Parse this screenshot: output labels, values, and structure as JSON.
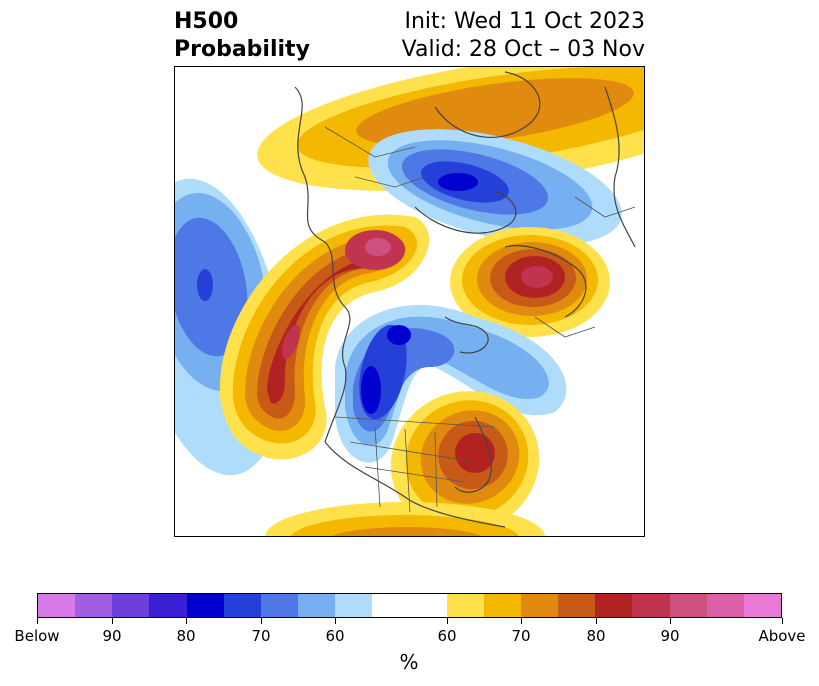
{
  "title": {
    "left_line1": "H500",
    "left_line2": "Probability",
    "right_line1": "Init: Wed 11 Oct 2023",
    "right_line2": "Valid: 28 Oct – 03 Nov"
  },
  "map": {
    "projection": "polar stereographic, North America / Arctic",
    "features": [
      "coastlines",
      "country borders",
      "US state borders",
      "Canadian province borders"
    ]
  },
  "colorbar": {
    "unit": "%",
    "segments": [
      {
        "color": "#d87be8"
      },
      {
        "color": "#a15ee0"
      },
      {
        "color": "#6e3fd9"
      },
      {
        "color": "#3a20d4"
      },
      {
        "color": "#0000cf"
      },
      {
        "color": "#2540d8"
      },
      {
        "color": "#4d78e6"
      },
      {
        "color": "#76b0f1"
      },
      {
        "color": "#aedcfa"
      },
      {
        "color": "#ffffff"
      },
      {
        "color": "#ffe14c"
      },
      {
        "color": "#f4b800"
      },
      {
        "color": "#e08a10"
      },
      {
        "color": "#c85a18"
      },
      {
        "color": "#b02320"
      },
      {
        "color": "#c03450"
      },
      {
        "color": "#cc5080"
      },
      {
        "color": "#dc60a8"
      },
      {
        "color": "#e87ad8"
      }
    ],
    "tick_labels": [
      "Below",
      "90",
      "80",
      "70",
      "60",
      "60",
      "70",
      "80",
      "90",
      "Above"
    ]
  }
}
